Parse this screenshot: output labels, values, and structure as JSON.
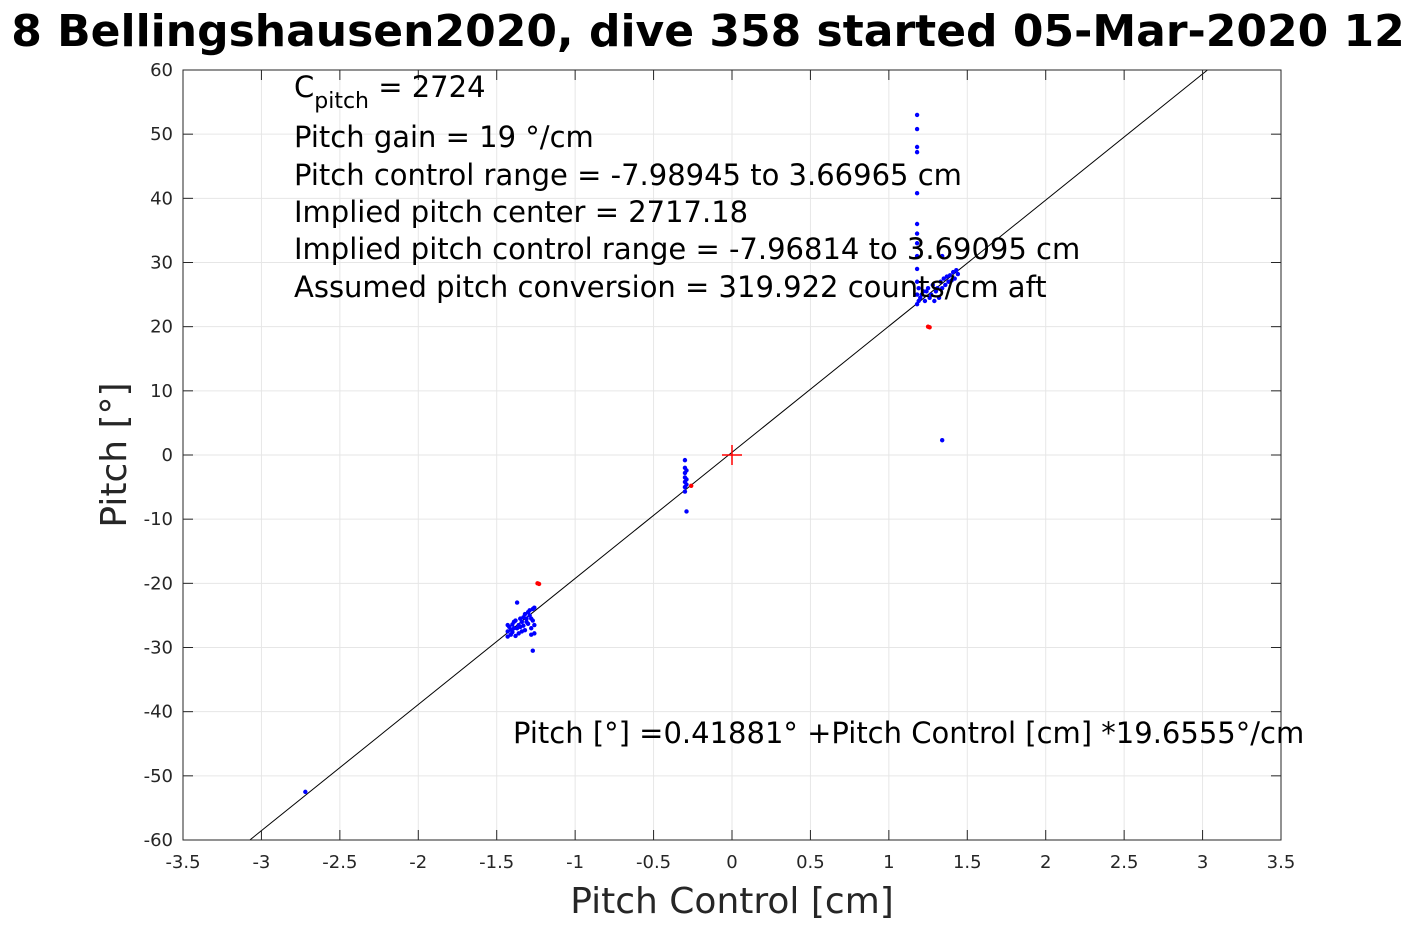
{
  "chart_data": {
    "type": "scatter",
    "title": "8 Bellingshausen2020, dive 358 started 05-Mar-2020 12",
    "xlabel": "Pitch Control [cm]",
    "ylabel": "Pitch [°]",
    "xlim": [
      -3.5,
      3.5
    ],
    "ylim": [
      -60,
      60
    ],
    "xticks": [
      -3.5,
      -3,
      -2.5,
      -2,
      -1.5,
      -1,
      -0.5,
      0,
      0.5,
      1,
      1.5,
      2,
      2.5,
      3,
      3.5
    ],
    "yticks": [
      -60,
      -50,
      -40,
      -30,
      -20,
      -10,
      0,
      10,
      20,
      30,
      40,
      50,
      60
    ],
    "grid": true,
    "annotations": {
      "c_pitch_prefix": "C",
      "c_pitch_sub": "pitch",
      "c_pitch_value": " = 2724",
      "lines": [
        "Pitch gain = 19 °/cm",
        "Pitch control range = -7.98945 to 3.66965 cm",
        "Implied pitch center = 2717.18",
        "Implied pitch control range = -7.96814 to 3.69095 cm",
        "Assumed pitch conversion = 319.922 counts/cm aft"
      ],
      "fit_equation": "Pitch [°] =0.41881° +Pitch Control [cm] *19.6555°/cm"
    },
    "fit_line": {
      "intercept": 0.41881,
      "slope": 19.6555,
      "color": "#000000"
    },
    "center_marker": {
      "x": 0,
      "y": 0,
      "color": "#ff0000"
    },
    "series": [
      {
        "color": "#0000ff",
        "points": [
          [
            -2.72,
            -52.5
          ],
          [
            -1.43,
            -26.5
          ],
          [
            -1.43,
            -27.5
          ],
          [
            -1.43,
            -28.3
          ],
          [
            -1.42,
            -26.8
          ],
          [
            -1.41,
            -27.2
          ],
          [
            -1.41,
            -28.0
          ],
          [
            -1.4,
            -26.4
          ],
          [
            -1.4,
            -27.6
          ],
          [
            -1.39,
            -26.0
          ],
          [
            -1.39,
            -27.0
          ],
          [
            -1.38,
            -28.2
          ],
          [
            -1.38,
            -25.8
          ],
          [
            -1.37,
            -27.0
          ],
          [
            -1.37,
            -23.0
          ],
          [
            -1.36,
            -26.5
          ],
          [
            -1.36,
            -27.8
          ],
          [
            -1.35,
            -25.5
          ],
          [
            -1.35,
            -26.8
          ],
          [
            -1.34,
            -27.5
          ],
          [
            -1.34,
            -26.0
          ],
          [
            -1.33,
            -25.3
          ],
          [
            -1.33,
            -26.6
          ],
          [
            -1.32,
            -27.3
          ],
          [
            -1.32,
            -24.8
          ],
          [
            -1.31,
            -26.0
          ],
          [
            -1.31,
            -25.5
          ],
          [
            -1.3,
            -24.5
          ],
          [
            -1.3,
            -26.3
          ],
          [
            -1.29,
            -25.0
          ],
          [
            -1.29,
            -24.2
          ],
          [
            -1.28,
            -25.5
          ],
          [
            -1.28,
            -27.0
          ],
          [
            -1.28,
            -28.0
          ],
          [
            -1.27,
            -24.0
          ],
          [
            -1.27,
            -25.8
          ],
          [
            -1.27,
            -30.5
          ],
          [
            -1.26,
            -23.8
          ],
          [
            -1.26,
            -26.5
          ],
          [
            -1.26,
            -27.8
          ],
          [
            -0.3,
            -0.8
          ],
          [
            -0.3,
            -2.0
          ],
          [
            -0.3,
            -2.8
          ],
          [
            -0.3,
            -3.5
          ],
          [
            -0.3,
            -4.2
          ],
          [
            -0.3,
            -5.0
          ],
          [
            -0.3,
            -5.7
          ],
          [
            -0.29,
            -2.4
          ],
          [
            -0.29,
            -3.8
          ],
          [
            -0.29,
            -4.6
          ],
          [
            -0.29,
            -8.8
          ],
          [
            1.18,
            53.0
          ],
          [
            1.18,
            50.8
          ],
          [
            1.18,
            48.0
          ],
          [
            1.18,
            47.2
          ],
          [
            1.18,
            40.8
          ],
          [
            1.18,
            36.0
          ],
          [
            1.18,
            34.5
          ],
          [
            1.18,
            33.0
          ],
          [
            1.18,
            31.0
          ],
          [
            1.18,
            29.0
          ],
          [
            1.18,
            27.0
          ],
          [
            1.18,
            25.0
          ],
          [
            1.18,
            23.5
          ],
          [
            1.19,
            24.0
          ],
          [
            1.19,
            26.0
          ],
          [
            1.2,
            24.5
          ],
          [
            1.21,
            25.0
          ],
          [
            1.22,
            25.5
          ],
          [
            1.23,
            24.0
          ],
          [
            1.24,
            25.5
          ],
          [
            1.25,
            26.0
          ],
          [
            1.26,
            24.5
          ],
          [
            1.27,
            25.0
          ],
          [
            1.28,
            26.5
          ],
          [
            1.29,
            24.0
          ],
          [
            1.3,
            25.5
          ],
          [
            1.31,
            26.0
          ],
          [
            1.32,
            24.5
          ],
          [
            1.33,
            27.0
          ],
          [
            1.34,
            26.0
          ],
          [
            1.35,
            27.5
          ],
          [
            1.36,
            26.5
          ],
          [
            1.37,
            27.8
          ],
          [
            1.38,
            27.0
          ],
          [
            1.39,
            28.0
          ],
          [
            1.4,
            27.2
          ],
          [
            1.41,
            28.5
          ],
          [
            1.42,
            27.5
          ],
          [
            1.43,
            28.8
          ],
          [
            1.44,
            28.2
          ],
          [
            1.34,
            31.0
          ],
          [
            1.34,
            2.3
          ]
        ]
      },
      {
        "color": "#ff0000",
        "points": [
          [
            -1.24,
            -20.0
          ],
          [
            -1.23,
            -20.1
          ],
          [
            -0.26,
            -4.8
          ],
          [
            1.25,
            20.0
          ],
          [
            1.26,
            19.9
          ]
        ]
      }
    ]
  }
}
